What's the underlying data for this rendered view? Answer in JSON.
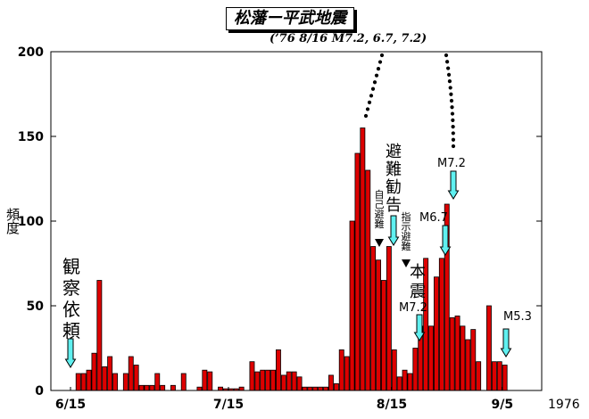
{
  "chart_data": {
    "type": "bar",
    "title": "松藩ー平武地震",
    "subtitle": "(’76 8/16 M7.2, 6.7, 7.2)",
    "xlabel": "",
    "ylabel": "頻度",
    "ylim": [
      0,
      200
    ],
    "yticks": [
      0,
      50,
      100,
      150,
      200
    ],
    "x_tick_labels": [
      {
        "label": "6/15",
        "day": 0
      },
      {
        "label": "7/15",
        "day": 30
      },
      {
        "label": "8/15",
        "day": 61
      },
      {
        "label": "9/5",
        "day": 82
      }
    ],
    "year_label": "1976",
    "start_date": "1976-06-15",
    "bar_color": "#dd0000",
    "series": [
      {
        "values": [
          0,
          10,
          10,
          12,
          22,
          65,
          14,
          20,
          10,
          0,
          10,
          20,
          15,
          3,
          3,
          3,
          10,
          3,
          0,
          3,
          0,
          10,
          0,
          0,
          2,
          12,
          11,
          0,
          2,
          1,
          1,
          1,
          2,
          0,
          17,
          11,
          12,
          12,
          12,
          24,
          9,
          11,
          11,
          8,
          2,
          2,
          2,
          2,
          2,
          9,
          4,
          24,
          20,
          100,
          140,
          155,
          130,
          85,
          77,
          65,
          85,
          24,
          8,
          12,
          10,
          25,
          38,
          78,
          38,
          67,
          78,
          110,
          43,
          44,
          38,
          30,
          36,
          17,
          0,
          50,
          17,
          17,
          15
        ]
      }
    ],
    "annotations": [
      {
        "text": "観察依頼",
        "day": 0
      },
      {
        "text": "自己避難",
        "day": 57
      },
      {
        "text": "避難勧告",
        "day": 59
      },
      {
        "text": "指示避難",
        "day": 61
      },
      {
        "text": "本震",
        "day": 63
      },
      {
        "text": "M7.2",
        "day": 63
      },
      {
        "text": "M6.7",
        "day": 70
      },
      {
        "text": "M7.2",
        "day": 71
      },
      {
        "text": "M5.3",
        "day": 81
      }
    ]
  }
}
